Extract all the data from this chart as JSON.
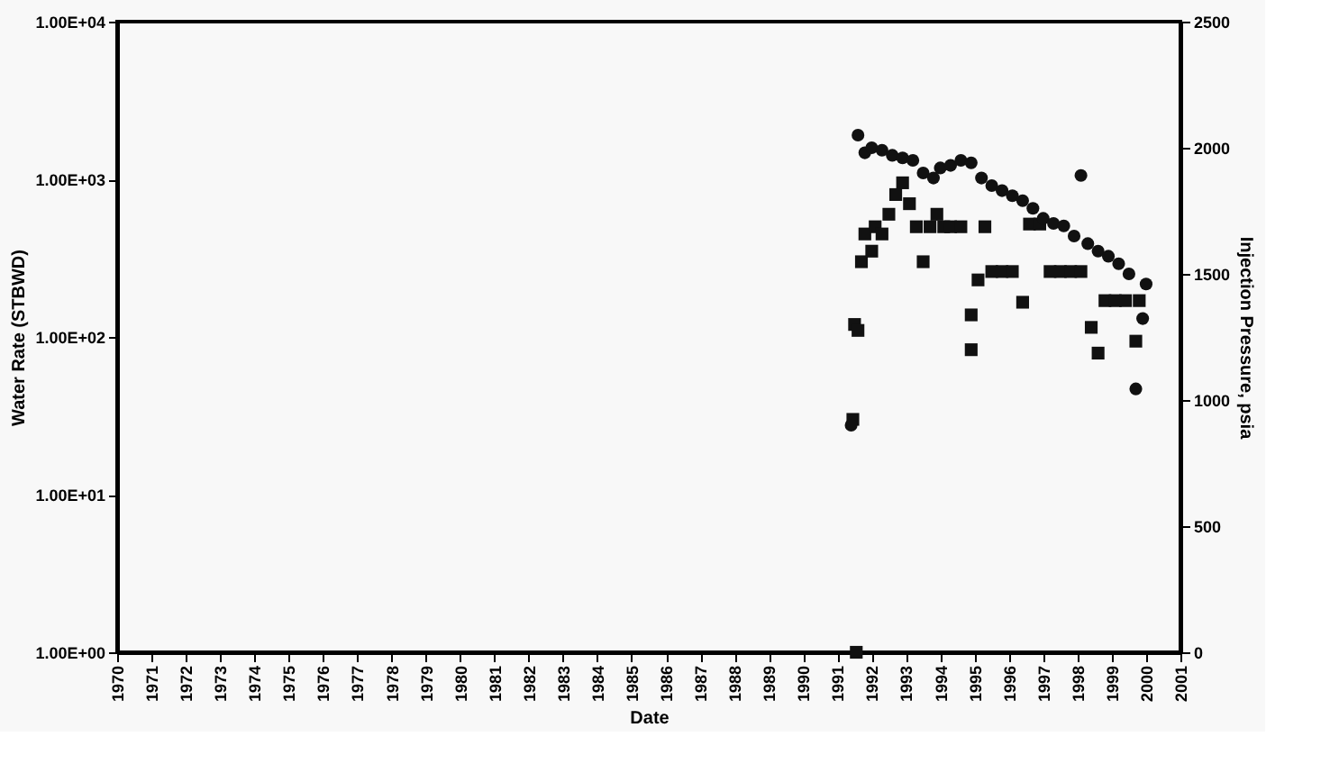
{
  "chart_data": {
    "type": "scatter",
    "xlabel": "Date",
    "ylabel": "Water Rate (STBWD)",
    "y2label": "Injection Pressure, psia",
    "xlim": [
      1970,
      2001
    ],
    "xticks": [
      1970,
      1971,
      1972,
      1973,
      1974,
      1975,
      1976,
      1977,
      1978,
      1979,
      1980,
      1981,
      1982,
      1983,
      1984,
      1985,
      1986,
      1987,
      1988,
      1989,
      1990,
      1991,
      1992,
      1993,
      1994,
      1995,
      1996,
      1997,
      1998,
      1999,
      2000,
      2001
    ],
    "ylim": [
      1,
      10000
    ],
    "log": "y",
    "yticks": [
      {
        "value": 1,
        "label": "1.00E+00"
      },
      {
        "value": 10,
        "label": "1.00E+01"
      },
      {
        "value": 100,
        "label": "1.00E+02"
      },
      {
        "value": 1000,
        "label": "1.00E+03"
      },
      {
        "value": 10000,
        "label": "1.00E+04"
      }
    ],
    "y2lim": [
      0,
      2500
    ],
    "y2ticks": [
      0,
      500,
      1000,
      1500,
      2000,
      2500
    ],
    "grid": false,
    "series": [
      {
        "color": "#111111",
        "marker": "square",
        "x": [
          1991.55,
          1991.45,
          1991.5,
          1991.6,
          1991.7,
          1991.8,
          1992.0,
          1992.1,
          1992.3,
          1992.5,
          1992.7,
          1992.9,
          1993.1,
          1993.3,
          1993.5,
          1993.7,
          1993.9,
          1994.1,
          1994.3,
          1994.6,
          1994.9,
          1994.9,
          1995.1,
          1995.3,
          1995.5,
          1995.8,
          1996.1,
          1996.4,
          1996.6,
          1996.9,
          1997.2,
          1997.5,
          1997.8,
          1998.1,
          1998.4,
          1998.6,
          1998.8,
          1999.1,
          1999.4,
          1999.7,
          1999.8
        ],
        "values": [
          1,
          30,
          120,
          110,
          300,
          450,
          350,
          500,
          450,
          600,
          800,
          950,
          700,
          500,
          300,
          500,
          600,
          500,
          500,
          500,
          138,
          83,
          230,
          500,
          260,
          260,
          260,
          166,
          520,
          520,
          260,
          260,
          260,
          260,
          115,
          79,
          170,
          170,
          170,
          94,
          170
        ]
      },
      {
        "color": "#111111",
        "marker": "circle",
        "axis": "y2",
        "x": [
          1991.4,
          1991.6,
          1991.8,
          1992.0,
          1992.3,
          1992.6,
          1992.9,
          1993.2,
          1993.5,
          1993.8,
          1994.0,
          1994.3,
          1994.6,
          1994.9,
          1995.2,
          1995.5,
          1995.8,
          1996.1,
          1996.4,
          1996.7,
          1997.0,
          1997.3,
          1997.6,
          1997.9,
          1998.1,
          1998.3,
          1998.6,
          1998.9,
          1999.2,
          1999.5,
          1999.7,
          1999.9,
          2000.0
        ],
        "values": [
          900,
          2050,
          1980,
          2000,
          1990,
          1970,
          1960,
          1950,
          1900,
          1880,
          1920,
          1930,
          1950,
          1940,
          1880,
          1850,
          1830,
          1810,
          1790,
          1760,
          1720,
          1700,
          1690,
          1650,
          1890,
          1620,
          1590,
          1570,
          1540,
          1500,
          1044,
          1323,
          1460
        ]
      }
    ]
  }
}
